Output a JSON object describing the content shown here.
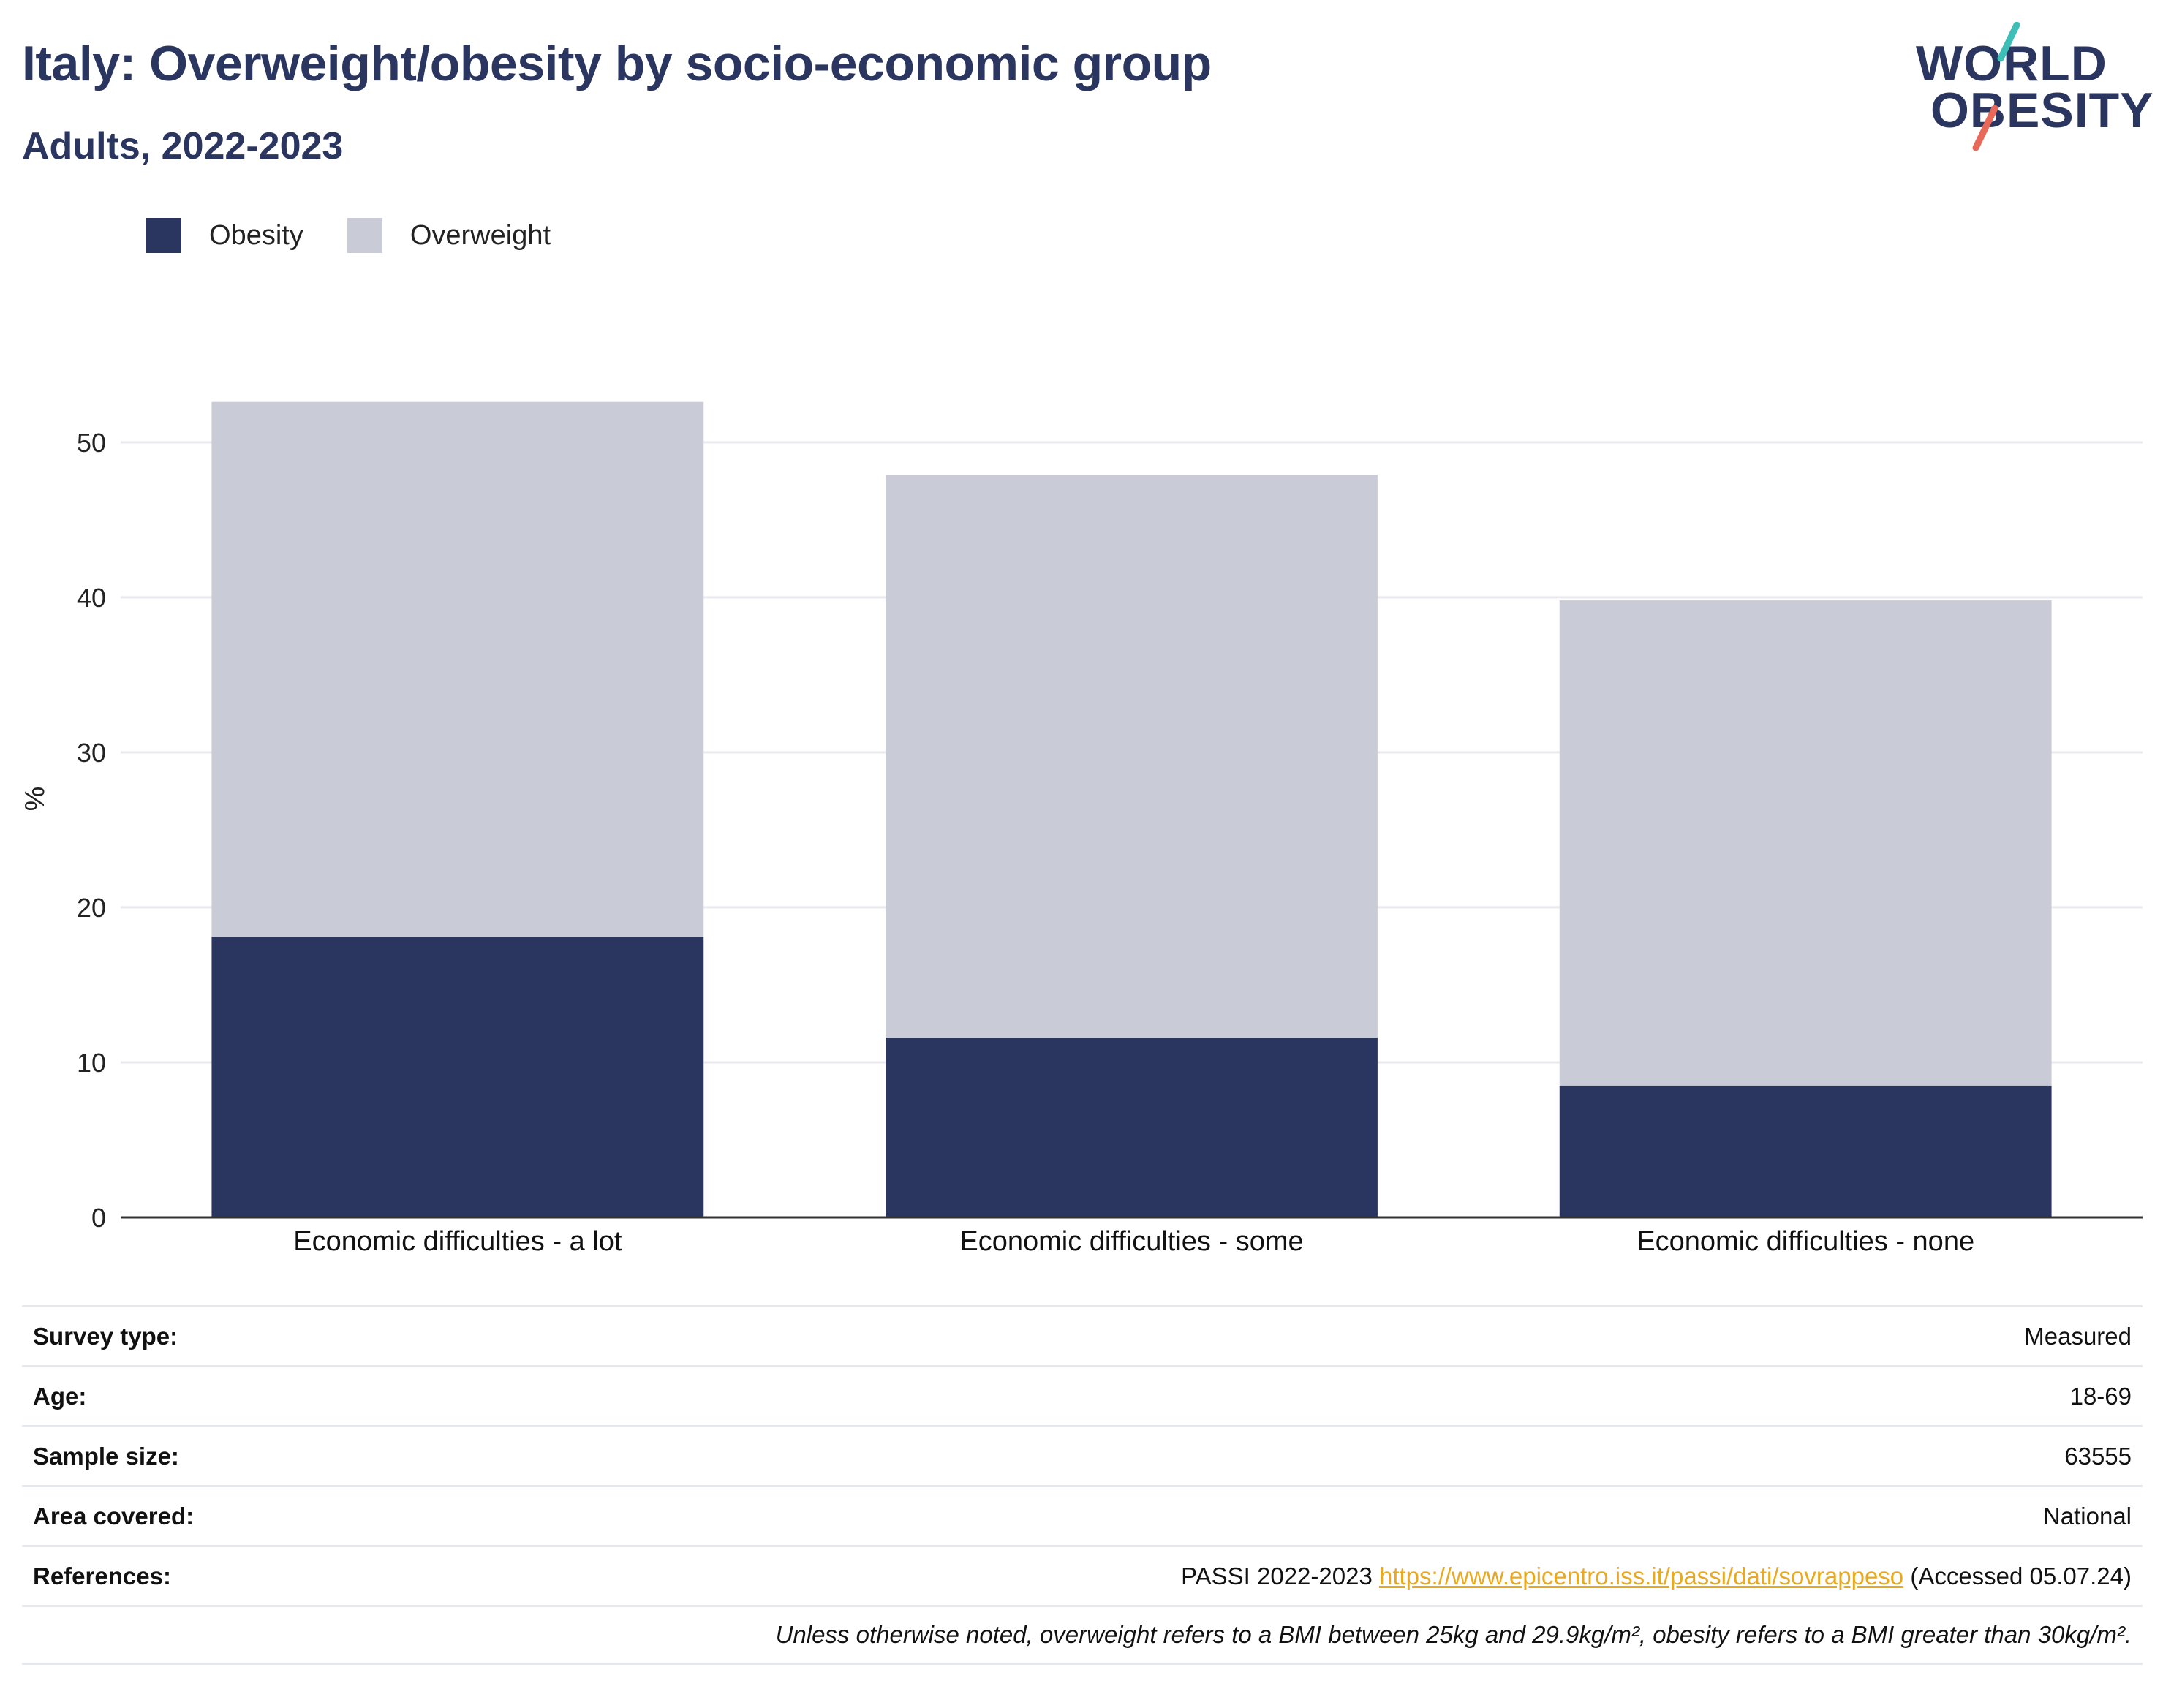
{
  "header": {
    "title": "Italy: Overweight/obesity by socio-economic group",
    "subtitle": "Adults, 2022-2023"
  },
  "logo": {
    "line1": "WORLD",
    "line2": "OBESITY",
    "colors": {
      "slash_top": "#3dbfb8",
      "slash_bottom": "#e8685a",
      "text": "#2a365f"
    }
  },
  "legend": {
    "obesity_label": "Obesity",
    "overweight_label": "Overweight"
  },
  "colors": {
    "obesity": "#2a365f",
    "overweight": "#c9ccd7",
    "grid": "#e8e9ee",
    "axis": "#333333",
    "link": "#e9a91f"
  },
  "chart_data": {
    "type": "bar",
    "stacked": true,
    "categories": [
      "Economic difficulties - a lot",
      "Economic difficulties - some",
      "Economic difficulties - none"
    ],
    "series": [
      {
        "name": "Obesity",
        "values": [
          18.1,
          11.6,
          8.5
        ]
      },
      {
        "name": "Overweight",
        "values": [
          34.5,
          36.3,
          31.3
        ]
      }
    ],
    "ylabel": "%",
    "xlabel": "",
    "ylim": [
      0,
      54
    ],
    "yticks": [
      0,
      10,
      20,
      30,
      40,
      50
    ],
    "grid": true,
    "legend_position": "top-left"
  },
  "meta": {
    "survey_type_label": "Survey type:",
    "survey_type_value": "Measured",
    "age_label": "Age:",
    "age_value": "18-69",
    "sample_size_label": "Sample size:",
    "sample_size_value": "63555",
    "area_label": "Area covered:",
    "area_value": "National",
    "references_label": "References:",
    "references_prefix": "PASSI 2022-2023",
    "references_link": "https://www.epicentro.iss.it/passi/dati/sovrappeso",
    "references_suffix": "(Accessed 05.07.24)",
    "note": "Unless otherwise noted, overweight refers to a BMI between 25kg and 29.9kg/m², obesity refers to a BMI greater than 30kg/m²."
  }
}
